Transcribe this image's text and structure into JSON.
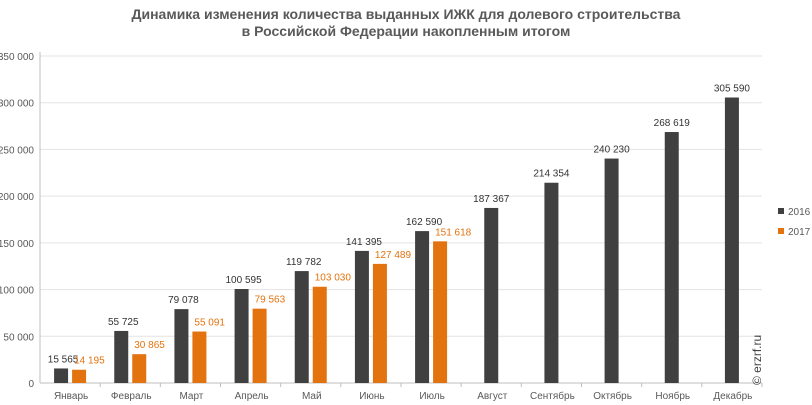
{
  "title": [
    "Динамика изменения количества выданных ИЖК для долевого строительства",
    "в Российской  Федерации накопленным итогом"
  ],
  "watermark": "© erzrf.ru",
  "colors": {
    "series_2016": "#404040",
    "series_2017": "#e3730f",
    "grid": "#e3e3e3",
    "axis": "#bfbfbf",
    "tick_text": "#595959"
  },
  "chart_data": {
    "type": "bar",
    "categories": [
      "Январь",
      "Февраль",
      "Март",
      "Апрель",
      "Май",
      "Июнь",
      "Июль",
      "Август",
      "Сентябрь",
      "Октябрь",
      "Ноябрь",
      "Декабрь"
    ],
    "series": [
      {
        "name": "2016",
        "values": [
          15565,
          55725,
          79078,
          100595,
          119782,
          141395,
          162590,
          187367,
          214354,
          240230,
          268619,
          305590
        ],
        "labels": [
          "15 565",
          "55 725",
          "79 078",
          "100 595",
          "119 782",
          "141 395",
          "162 590",
          "187 367",
          "214 354",
          "240 230",
          "268 619",
          "305 590"
        ]
      },
      {
        "name": "2017",
        "values": [
          14195,
          30865,
          55091,
          79563,
          103030,
          127489,
          151618,
          null,
          null,
          null,
          null,
          null
        ],
        "labels": [
          "14 195",
          "30 865",
          "55 091",
          "79 563",
          "103 030",
          "127 489",
          "151 618",
          null,
          null,
          null,
          null,
          null
        ]
      }
    ],
    "yticks": [
      0,
      50000,
      100000,
      150000,
      200000,
      250000,
      300000,
      350000
    ],
    "ytick_labels": [
      "0",
      "50 000",
      "100 000",
      "150 000",
      "200 000",
      "250 000",
      "300 000",
      "350 000"
    ],
    "ylim": [
      0,
      350000
    ],
    "grid": true,
    "legend_position": "right"
  }
}
